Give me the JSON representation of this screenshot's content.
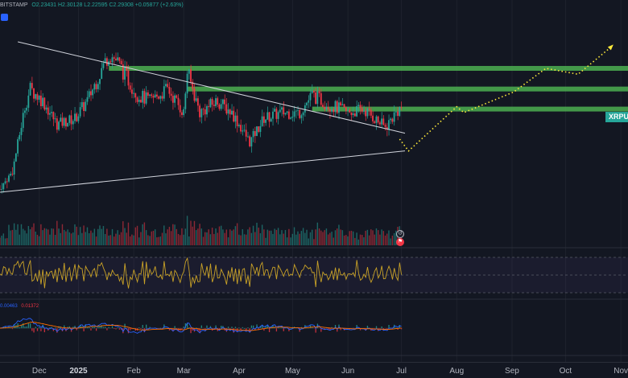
{
  "header": {
    "exchange": "BITSTAMP",
    "ohlc": "O2.23431 H2.30128 L2.22595 C2.29308 +0.05877 (+2.63%)"
  },
  "symbol_tag": "XRPU",
  "macd_values": {
    "macd": "0.00463",
    "signal": "0.01372"
  },
  "xaxis": {
    "labels": [
      "Dec",
      "2025",
      "Feb",
      "Mar",
      "Apr",
      "May",
      "Jun",
      "Jul",
      "Aug",
      "Sep",
      "Oct",
      "Nov"
    ]
  },
  "icons": {
    "header_badge": "chart-settings-icon",
    "event_top": "dividend-event-icon",
    "event_bottom": "earnings-flag-icon"
  },
  "colors": {
    "background": "#131722",
    "up": "#26a69a",
    "down": "#f23645",
    "resistance": "#4caf50",
    "projection": "#ffeb3b",
    "rsi": "#c9a227",
    "macd": "#2962ff",
    "signal": "#ff6d00"
  },
  "chart_data": {
    "type": "candlestick",
    "x_range": [
      "2024-11-18",
      "2025-11-05"
    ],
    "y_scale": "linear",
    "resistance_zones": [
      2.95,
      2.6,
      2.26
    ],
    "triangle": {
      "upper": [
        [
          "2024-11-28",
          3.4
        ],
        [
          "2025-07-03",
          1.85
        ]
      ],
      "lower": [
        [
          "2024-11-18",
          0.85
        ],
        [
          "2025-07-03",
          1.55
        ]
      ]
    },
    "projection_path": [
      [
        "2025-06-30",
        1.75
      ],
      [
        "2025-07-05",
        1.55
      ],
      [
        "2025-08-01",
        2.3
      ],
      [
        "2025-08-05",
        2.2
      ],
      [
        "2025-09-02",
        2.55
      ],
      [
        "2025-09-20",
        2.95
      ],
      [
        "2025-10-08",
        2.85
      ],
      [
        "2025-10-26",
        3.3
      ]
    ],
    "close_path": [
      [
        "2024-11-18",
        0.9
      ],
      [
        "2024-11-25",
        1.2
      ],
      [
        "2024-12-02",
        2.3
      ],
      [
        "2024-12-05",
        2.6
      ],
      [
        "2024-12-12",
        2.4
      ],
      [
        "2024-12-20",
        2.0
      ],
      [
        "2024-12-30",
        2.1
      ],
      [
        "2025-01-06",
        2.4
      ],
      [
        "2025-01-15",
        3.0
      ],
      [
        "2025-01-18",
        3.2
      ],
      [
        "2025-01-22",
        3.1
      ],
      [
        "2025-01-28",
        2.8
      ],
      [
        "2025-02-03",
        2.5
      ],
      [
        "2025-02-10",
        2.4
      ],
      [
        "2025-02-20",
        2.6
      ],
      [
        "2025-03-01",
        2.2
      ],
      [
        "2025-03-03",
        2.9
      ],
      [
        "2025-03-10",
        2.2
      ],
      [
        "2025-03-20",
        2.4
      ],
      [
        "2025-03-28",
        2.2
      ],
      [
        "2025-04-07",
        1.7
      ],
      [
        "2025-04-15",
        2.1
      ],
      [
        "2025-04-25",
        2.2
      ],
      [
        "2025-05-05",
        2.2
      ],
      [
        "2025-05-12",
        2.5
      ],
      [
        "2025-05-20",
        2.35
      ],
      [
        "2025-06-01",
        2.2
      ],
      [
        "2025-06-10",
        2.25
      ],
      [
        "2025-06-22",
        1.95
      ],
      [
        "2025-06-28",
        2.2
      ],
      [
        "2025-07-01",
        2.29
      ]
    ]
  }
}
